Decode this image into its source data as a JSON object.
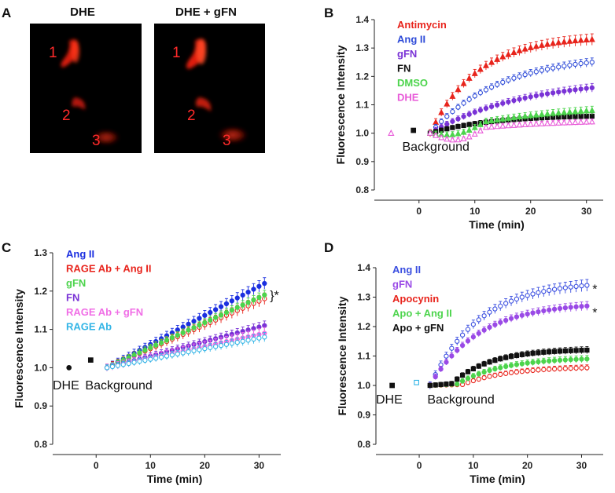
{
  "panel_labels": {
    "a": "A",
    "b": "B",
    "c": "C",
    "d": "D"
  },
  "micrographs": {
    "left_title": "DHE",
    "right_title": "DHE + gFN",
    "cell_labels": [
      "1",
      "2",
      "3"
    ],
    "signal_color": "#ff2a1a"
  },
  "chart_data": [
    {
      "id": "B",
      "type": "scatter",
      "xlabel": "Time (min)",
      "ylabel": "Fluorescence Intensity",
      "xlim": [
        -8,
        33
      ],
      "ylim": [
        0.8,
        1.4
      ],
      "xticks": [
        0,
        10,
        20,
        30
      ],
      "yticks": [
        0.8,
        0.9,
        1.0,
        1.1,
        1.2,
        1.3,
        1.4
      ],
      "ytick_labels": [
        "0.8",
        "0.9",
        "1.0",
        "1.1",
        "1.2",
        "1.3",
        "1.4"
      ],
      "annotations": [
        {
          "text": "Background",
          "x": -3,
          "y": 0.96
        }
      ],
      "series": [
        {
          "name": "Antimycin",
          "color": "#e8241c",
          "marker": "triangle",
          "filled": true,
          "start": 1.0,
          "end": 1.33,
          "rate": 0.12,
          "err": 0.02
        },
        {
          "name": "Ang II",
          "color": "#2e4bd8",
          "marker": "circle",
          "filled": false,
          "start": 1.0,
          "end": 1.25,
          "rate": 0.08,
          "err": 0.015
        },
        {
          "name": "gFN",
          "color": "#7a33d6",
          "marker": "circle",
          "filled": true,
          "start": 1.0,
          "end": 1.16,
          "rate": 0.06,
          "err": 0.015
        },
        {
          "name": "FN",
          "color": "#111111",
          "marker": "square",
          "filled": true,
          "start": 1.0,
          "end": 1.06,
          "rate": 0.09,
          "err": 0.012
        },
        {
          "name": "DMSO",
          "color": "#4cd44c",
          "marker": "triangle",
          "filled": true,
          "start": 1.0,
          "end": 1.08,
          "rate": 0.05,
          "err": 0.015,
          "dip": 0.025
        },
        {
          "name": "DHE",
          "color": "#e85ad8",
          "marker": "triangle",
          "filled": false,
          "start": 1.0,
          "end": 1.04,
          "rate": 0.05,
          "err": 0.01,
          "dip": 0.035
        }
      ],
      "background_points": [
        {
          "x": -5,
          "y": 1.0,
          "color": "#e85ad8",
          "marker": "triangle",
          "filled": false
        },
        {
          "x": -1,
          "y": 1.01,
          "color": "#111111",
          "marker": "square",
          "filled": true
        }
      ]
    },
    {
      "id": "C",
      "type": "scatter",
      "xlabel": "Time (min)",
      "ylabel": "Fluorescence Intensity",
      "xlim": [
        -8,
        34
      ],
      "ylim": [
        0.8,
        1.3
      ],
      "xticks": [
        0,
        10,
        20,
        30
      ],
      "yticks": [
        0.8,
        0.9,
        1.0,
        1.1,
        1.2,
        1.3
      ],
      "ytick_labels": [
        "0.8",
        "0.9",
        "1.0",
        "1.1",
        "1.2",
        "1.3"
      ],
      "annotations": [
        {
          "text": "DHE",
          "x": -8,
          "y": 0.96
        },
        {
          "text": "Background",
          "x": -2,
          "y": 0.96
        },
        {
          "text": "}*",
          "x": 32,
          "y": 1.19
        }
      ],
      "series": [
        {
          "name": "Ang II",
          "color": "#1b2fe0",
          "marker": "circle",
          "filled": true,
          "start": 1.0,
          "end": 1.22,
          "rate": 0.0,
          "err": 0.015
        },
        {
          "name": "RAGE Ab + Ang II",
          "color": "#e8241c",
          "marker": "circle",
          "filled": false,
          "start": 1.0,
          "end": 1.18,
          "rate": 0.0,
          "err": 0.015
        },
        {
          "name": "gFN",
          "color": "#4cd44c",
          "marker": "circle",
          "filled": true,
          "start": 1.0,
          "end": 1.19,
          "rate": 0.0,
          "err": 0.012
        },
        {
          "name": "FN",
          "color": "#7a33d6",
          "marker": "circle",
          "filled": true,
          "start": 1.0,
          "end": 1.11,
          "rate": 0.0,
          "err": 0.012
        },
        {
          "name": "RAGE Ab + gFN",
          "color": "#f06ee6",
          "marker": "circle",
          "filled": true,
          "start": 1.0,
          "end": 1.09,
          "rate": 0.0,
          "err": 0.015
        },
        {
          "name": "RAGE Ab",
          "color": "#33b5e6",
          "marker": "circle",
          "filled": false,
          "start": 1.0,
          "end": 1.08,
          "rate": 0.0,
          "err": 0.012
        }
      ],
      "background_points": [
        {
          "x": -5,
          "y": 1.0,
          "color": "#111111",
          "marker": "circle",
          "filled": true
        },
        {
          "x": -1,
          "y": 1.02,
          "color": "#111111",
          "marker": "square",
          "filled": true
        }
      ]
    },
    {
      "id": "D",
      "type": "scatter",
      "xlabel": "Time (min)",
      "ylabel": "Fluorescence Intensity",
      "xlim": [
        -8,
        34
      ],
      "ylim": [
        0.8,
        1.4
      ],
      "xticks": [
        0,
        10,
        20,
        30
      ],
      "yticks": [
        0.8,
        0.9,
        1.0,
        1.1,
        1.2,
        1.3,
        1.4
      ],
      "ytick_labels": [
        "0.8",
        "0.9",
        "1.0",
        "1.1",
        "1.2",
        "1.3",
        "1.4"
      ],
      "annotations": [
        {
          "text": "DHE",
          "x": -8,
          "y": 0.96
        },
        {
          "text": "Background",
          "x": 1.5,
          "y": 0.96
        },
        {
          "text": "*",
          "x": 32,
          "y": 1.33
        },
        {
          "text": "*",
          "x": 32,
          "y": 1.25
        }
      ],
      "series": [
        {
          "name": "Ang II",
          "color": "#3b4fe0",
          "marker": "circle",
          "filled": false,
          "start": 1.0,
          "end": 1.34,
          "rate": 0.11,
          "err": 0.02
        },
        {
          "name": "gFN",
          "color": "#9a4ae6",
          "marker": "circle",
          "filled": true,
          "start": 1.0,
          "end": 1.27,
          "rate": 0.11,
          "err": 0.015
        },
        {
          "name": "Apocynin",
          "color": "#e8241c",
          "marker": "circle",
          "filled": false,
          "start": 1.0,
          "end": 1.06,
          "rate": 0.12,
          "err": 0.01,
          "flat_until": 8
        },
        {
          "name": "Apo + Ang II",
          "color": "#4cd44c",
          "marker": "circle",
          "filled": true,
          "start": 1.0,
          "end": 1.09,
          "rate": 0.12,
          "err": 0.012,
          "flat_until": 7
        },
        {
          "name": "Apo + gFN",
          "color": "#111111",
          "marker": "square",
          "filled": true,
          "start": 1.0,
          "end": 1.12,
          "rate": 0.14,
          "err": 0.012,
          "flat_until": 6
        }
      ],
      "background_points": [
        {
          "x": -5,
          "y": 1.0,
          "color": "#111111",
          "marker": "square",
          "filled": true
        },
        {
          "x": -0.5,
          "y": 1.01,
          "color": "#33b5e6",
          "marker": "square",
          "filled": false
        }
      ],
      "background_label_color": "#33b5e6"
    }
  ]
}
